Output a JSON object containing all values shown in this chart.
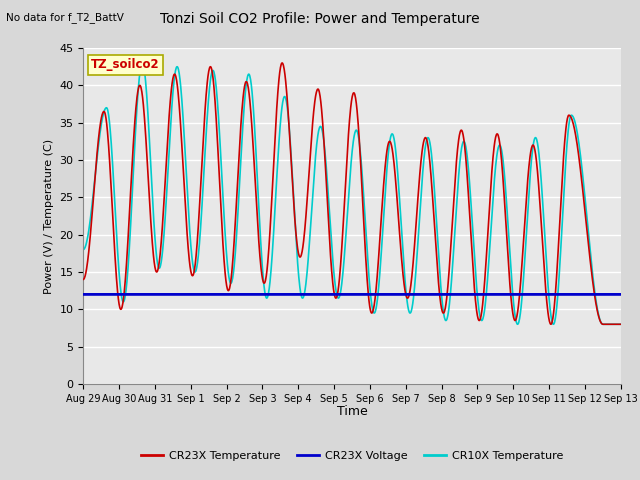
{
  "title": "Tonzi Soil CO2 Profile: Power and Temperature",
  "subtitle": "No data for f_T2_BattV",
  "ylabel": "Power (V) / Temperature (C)",
  "xlabel": "Time",
  "ylim": [
    0,
    45
  ],
  "yticks": [
    0,
    5,
    10,
    15,
    20,
    25,
    30,
    35,
    40,
    45
  ],
  "fig_bg_color": "#d8d8d8",
  "plot_bg_color": "#e8e8e8",
  "grid_color": "#ffffff",
  "legend_label_box": "TZ_soilco2",
  "legend_box_color": "#ffffcc",
  "legend_box_edge": "#aaaa00",
  "voltage_value": 12.0,
  "cr23x_color": "#cc0000",
  "voltage_color": "#0000cc",
  "cr10x_color": "#00cccc",
  "line_width": 1.2,
  "xtick_labels": [
    "Aug 29",
    "Aug 30",
    "Aug 31",
    "Sep 1",
    "Sep 2",
    "Sep 3",
    "Sep 4",
    "Sep 5",
    "Sep 6",
    "Sep 7",
    "Sep 8",
    "Sep 9",
    "Sep 10",
    "Sep 11",
    "Sep 12",
    "Sep 13"
  ],
  "cr23x_peak_days": [
    0.58,
    1.58,
    2.55,
    3.55,
    4.55,
    5.55,
    6.55,
    7.55,
    8.55,
    9.55,
    10.55,
    11.55,
    12.55,
    13.55
  ],
  "cr23x_peak_vals": [
    36.5,
    40.0,
    41.5,
    42.5,
    40.5,
    43.0,
    39.5,
    39.0,
    32.5,
    33.0,
    34.0,
    33.5,
    32.0,
    36.0
  ],
  "cr23x_trough_days": [
    0.0,
    1.05,
    2.05,
    3.05,
    4.05,
    5.05,
    6.05,
    7.05,
    8.05,
    9.05,
    10.05,
    11.05,
    12.05,
    13.05,
    14.5
  ],
  "cr23x_trough_vals": [
    14.0,
    10.0,
    15.0,
    14.5,
    12.5,
    13.5,
    17.0,
    11.5,
    9.5,
    11.5,
    9.5,
    8.5,
    8.5,
    8.0,
    8.0
  ],
  "cr10x_peak_days": [
    0.65,
    1.65,
    2.62,
    3.62,
    4.62,
    5.62,
    6.62,
    7.62,
    8.62,
    9.62,
    10.62,
    11.62,
    12.62,
    13.62
  ],
  "cr10x_peak_vals": [
    37.0,
    43.0,
    42.5,
    42.0,
    41.5,
    38.5,
    34.5,
    34.0,
    33.5,
    33.0,
    32.5,
    32.0,
    33.0,
    36.0
  ],
  "cr10x_trough_days": [
    0.0,
    1.12,
    2.12,
    3.12,
    4.12,
    5.12,
    6.12,
    7.12,
    8.12,
    9.12,
    10.12,
    11.12,
    12.12,
    13.12,
    14.5
  ],
  "cr10x_trough_vals": [
    18.0,
    11.0,
    15.5,
    15.0,
    13.5,
    11.5,
    11.5,
    11.5,
    9.5,
    9.5,
    8.5,
    8.5,
    8.0,
    8.0,
    8.0
  ]
}
